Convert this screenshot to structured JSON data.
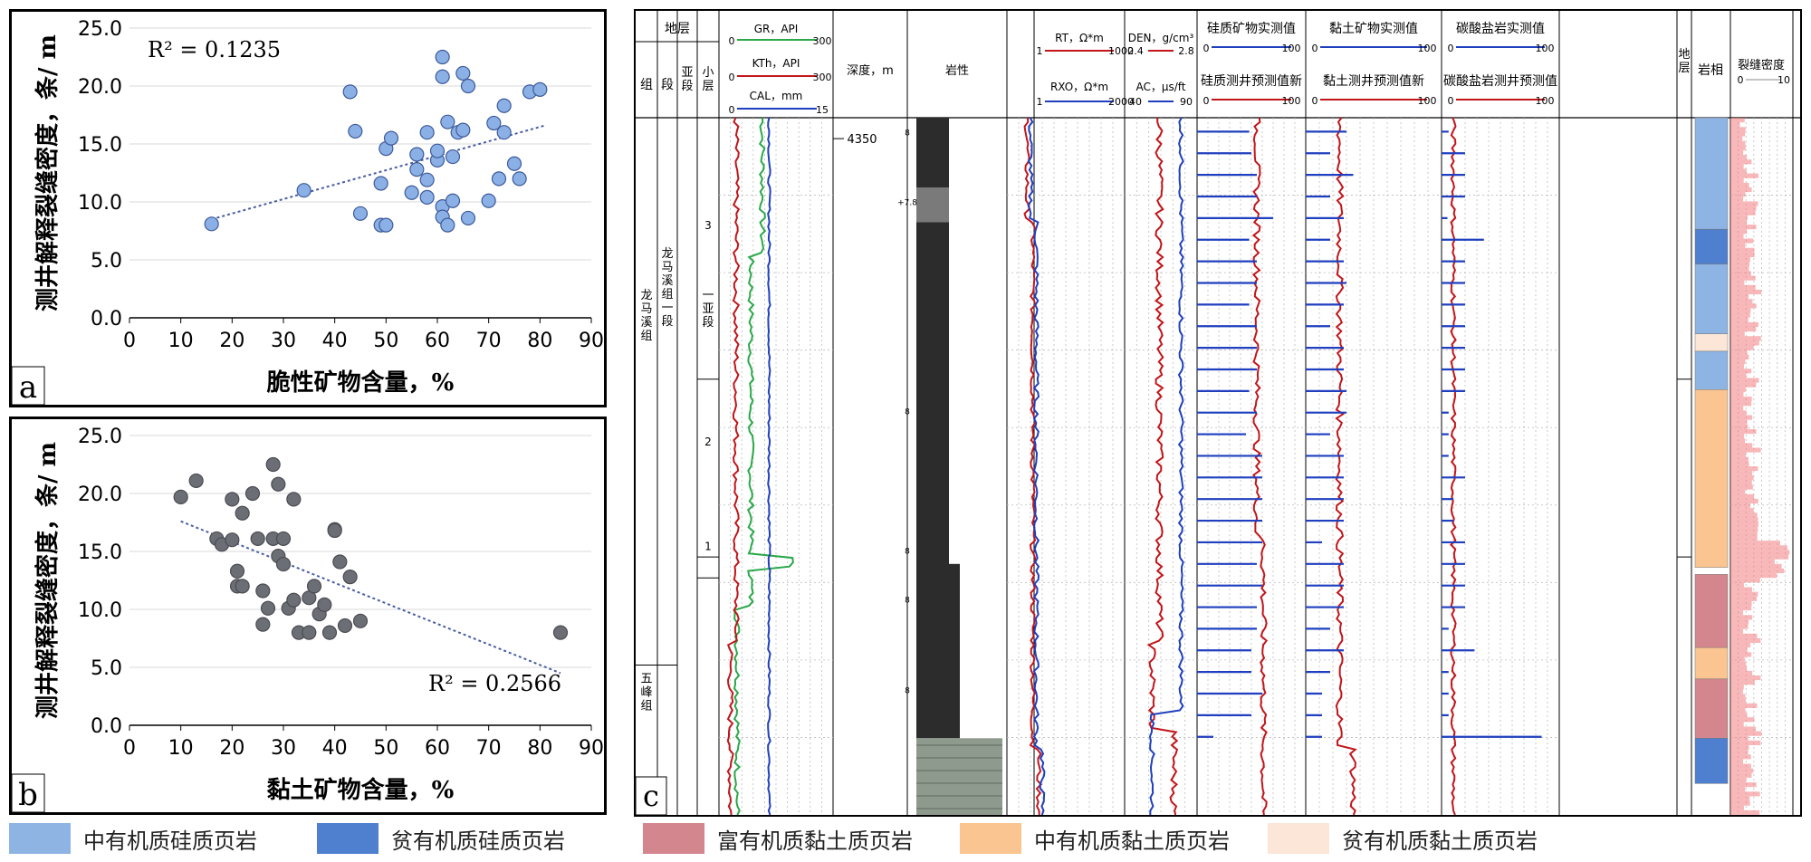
{
  "chart_data": [
    {
      "panel_label": "a",
      "type": "scatter",
      "xlabel": "脆性矿物含量，%",
      "ylabel": "测井解释裂缝密度，条/ m",
      "xlim": [
        0,
        90
      ],
      "ylim": [
        0,
        25
      ],
      "xticks": [
        "0",
        "10",
        "20",
        "30",
        "40",
        "50",
        "60",
        "70",
        "80",
        "90"
      ],
      "yticks": [
        "0.0",
        "5.0",
        "10.0",
        "15.0",
        "20.0",
        "25.0"
      ],
      "r2_label": "R² = 0.1235",
      "point_color": "#8ab0e6",
      "trend": {
        "x": [
          16,
          81
        ],
        "y": [
          8.5,
          16.6
        ]
      },
      "points": [
        [
          16,
          8.1
        ],
        [
          34,
          11.0
        ],
        [
          43,
          19.5
        ],
        [
          44,
          16.1
        ],
        [
          45,
          9.0
        ],
        [
          49,
          8.0
        ],
        [
          50,
          8.0
        ],
        [
          49,
          11.6
        ],
        [
          50,
          14.6
        ],
        [
          51,
          15.5
        ],
        [
          55,
          10.8
        ],
        [
          56,
          14.1
        ],
        [
          56,
          12.8
        ],
        [
          58,
          10.4
        ],
        [
          58,
          11.9
        ],
        [
          58,
          16.0
        ],
        [
          60,
          13.6
        ],
        [
          60,
          14.4
        ],
        [
          61,
          9.6
        ],
        [
          61,
          8.7
        ],
        [
          62,
          8.0
        ],
        [
          62,
          16.9
        ],
        [
          61,
          20.8
        ],
        [
          61,
          22.5
        ],
        [
          63,
          10.1
        ],
        [
          63,
          13.9
        ],
        [
          64,
          16.0
        ],
        [
          65,
          21.1
        ],
        [
          65,
          16.2
        ],
        [
          66,
          20.0
        ],
        [
          66,
          8.6
        ],
        [
          70,
          10.1
        ],
        [
          71,
          16.8
        ],
        [
          72,
          12.0
        ],
        [
          73,
          18.3
        ],
        [
          73,
          16.0
        ],
        [
          75,
          13.3
        ],
        [
          76,
          12.0
        ],
        [
          78,
          19.5
        ],
        [
          80,
          19.7
        ]
      ]
    },
    {
      "panel_label": "b",
      "type": "scatter",
      "xlabel": "黏土矿物含量，%",
      "ylabel": "测井解释裂缝密度，条/ m",
      "xlim": [
        0,
        90
      ],
      "ylim": [
        0,
        25
      ],
      "xticks": [
        "0",
        "10",
        "20",
        "30",
        "40",
        "50",
        "60",
        "70",
        "80",
        "90"
      ],
      "yticks": [
        "0.0",
        "5.0",
        "10.0",
        "15.0",
        "20.0",
        "25.0"
      ],
      "r2_label": "R² = 0.2566",
      "point_color": "#6b6e75",
      "trend": {
        "x": [
          10,
          84
        ],
        "y": [
          17.6,
          4.5
        ]
      },
      "points": [
        [
          10,
          19.7
        ],
        [
          13,
          21.1
        ],
        [
          17,
          16.1
        ],
        [
          18,
          15.6
        ],
        [
          20,
          16.0
        ],
        [
          20,
          19.5
        ],
        [
          21,
          12.0
        ],
        [
          21,
          13.3
        ],
        [
          22,
          18.3
        ],
        [
          22,
          12.0
        ],
        [
          24,
          20.0
        ],
        [
          25,
          16.1
        ],
        [
          26,
          11.6
        ],
        [
          26,
          8.7
        ],
        [
          27,
          10.1
        ],
        [
          28,
          22.5
        ],
        [
          28,
          16.1
        ],
        [
          29,
          20.8
        ],
        [
          29,
          14.6
        ],
        [
          30,
          16.1
        ],
        [
          30,
          13.9
        ],
        [
          31,
          10.1
        ],
        [
          32,
          10.8
        ],
        [
          32,
          19.5
        ],
        [
          33,
          8.0
        ],
        [
          35,
          11.0
        ],
        [
          35,
          8.0
        ],
        [
          36,
          12.0
        ],
        [
          37,
          9.6
        ],
        [
          38,
          10.4
        ],
        [
          39,
          8.0
        ],
        [
          40,
          16.9
        ],
        [
          40,
          16.8
        ],
        [
          41,
          14.1
        ],
        [
          42,
          8.6
        ],
        [
          43,
          12.8
        ],
        [
          45,
          9.0
        ],
        [
          84,
          8.0
        ]
      ]
    },
    {
      "panel_label": "c",
      "type": "log-panel",
      "depth_label": "4350",
      "header": {
        "stratum": "地层",
        "formation": "组",
        "member": "段",
        "submember": "亚段",
        "layer": "小层",
        "gr": "GR，API",
        "gr_range": [
          "0",
          "300"
        ],
        "kth": "KTh，API",
        "kth_range": [
          "0",
          "300"
        ],
        "cal": "CAL，mm",
        "cal_range": [
          "0",
          "15"
        ],
        "depth": "深度，m",
        "lithology": "岩性",
        "rt": "RT，Ω*m",
        "rt_range": [
          "1",
          "1000"
        ],
        "rxo": "RXO，Ω*m",
        "rxo_range": [
          "1",
          "2000"
        ],
        "den": "DEN，g/cm³",
        "den_range": [
          "2.4",
          "2.8"
        ],
        "ac": "AC，μs/ft",
        "ac_range": [
          "40",
          "90"
        ],
        "si_measured": "硅质矿物实测值",
        "si_pred": "硅质测井预测值新",
        "clay_measured": "黏土矿物实测值",
        "clay_pred": "黏土测井预测值新",
        "carb_measured": "碳酸盐岩实测值",
        "carb_pred": "碳酸盐岩测井预测值",
        "range_0_100": [
          "0",
          "100"
        ],
        "stratum2": "地层",
        "facies": "岩相",
        "frac": "裂缝密度",
        "frac_range": [
          "0",
          "10"
        ]
      },
      "formations": [
        "龙马溪组",
        "五峰组"
      ],
      "member_label": "龙马溪组一段",
      "submember_label": "一亚段",
      "layers": [
        "3",
        "2",
        "1"
      ],
      "lith_marks": [
        "8",
        "+7.8",
        "8",
        "8",
        "8",
        "8"
      ],
      "facies_column": [
        {
          "code": "mid-si",
          "from": 0.0,
          "to": 0.16
        },
        {
          "code": "poor-si",
          "from": 0.16,
          "to": 0.21
        },
        {
          "code": "mid-si",
          "from": 0.21,
          "to": 0.31
        },
        {
          "code": "poor-clay",
          "from": 0.31,
          "to": 0.335
        },
        {
          "code": "mid-si",
          "from": 0.335,
          "to": 0.39
        },
        {
          "code": "mid-clay",
          "from": 0.39,
          "to": 0.645
        },
        {
          "code": "rich-clay",
          "from": 0.655,
          "to": 0.76
        },
        {
          "code": "mid-clay",
          "from": 0.76,
          "to": 0.805
        },
        {
          "code": "rich-clay",
          "from": 0.805,
          "to": 0.89
        },
        {
          "code": "poor-si",
          "from": 0.89,
          "to": 0.955
        }
      ],
      "si_measured_values": [
        48,
        50,
        55,
        55,
        70,
        48,
        55,
        55,
        48,
        55,
        55,
        55,
        48,
        55,
        45,
        60,
        60,
        60,
        60,
        60,
        55,
        60,
        55,
        55,
        50,
        50,
        60,
        50,
        15
      ],
      "clay_measured_values": [
        30,
        18,
        35,
        18,
        28,
        18,
        28,
        30,
        28,
        18,
        28,
        28,
        30,
        30,
        18,
        28,
        28,
        28,
        28,
        12,
        28,
        28,
        28,
        18,
        28,
        18,
        12,
        12,
        12
      ],
      "carb_measured_values": [
        6,
        20,
        20,
        20,
        5,
        36,
        20,
        20,
        20,
        20,
        20,
        20,
        20,
        6,
        6,
        6,
        20,
        10,
        10,
        20,
        20,
        20,
        20,
        6,
        28,
        6,
        6,
        6,
        85
      ]
    }
  ],
  "legend": [
    {
      "label": "中有机质硅质页岩",
      "color": "#8eb4e3"
    },
    {
      "label": "贫有机质硅质页岩",
      "color": "#4f7fcf"
    },
    {
      "label": "富有机质黏土质页岩",
      "color": "#d3868d"
    },
    {
      "label": "中有机质黏土质页岩",
      "color": "#fac590"
    },
    {
      "label": "贫有机质黏土质页岩",
      "color": "#fbe6d8"
    }
  ],
  "colors": {
    "gr": "#2aa84a",
    "red": "#c2161b",
    "blue": "#1f3fbf",
    "trend": "#4a5da3",
    "lith_dark": "#2c2c2c",
    "frac": "#f37b7f"
  }
}
